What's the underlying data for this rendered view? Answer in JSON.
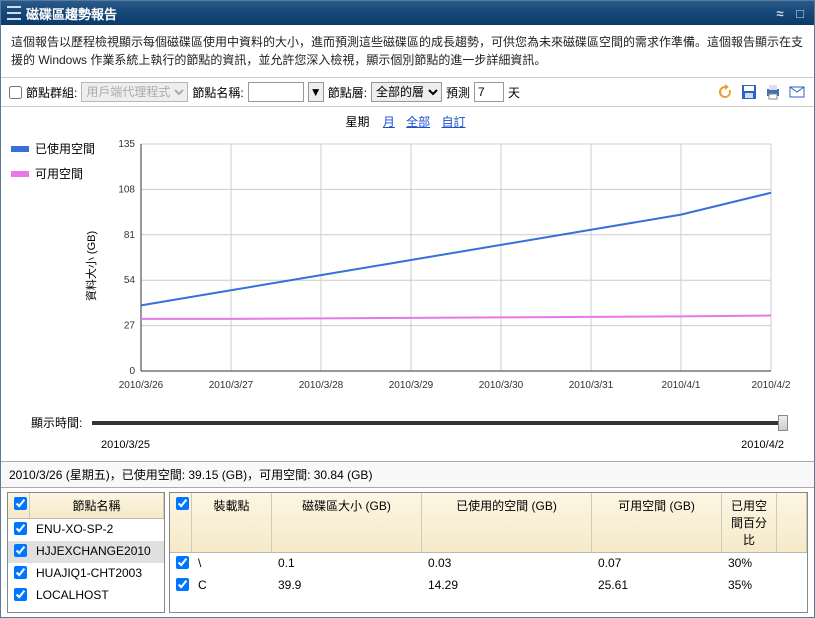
{
  "window": {
    "title": "磁碟區趨勢報告"
  },
  "description": "這個報告以歷程檢視顯示每個磁碟區使用中資料的大小，進而預測這些磁碟區的成長趨勢，可供您為未來磁碟區空間的需求作準備。這個報告顯示在支援的 Windows 作業系統上執行的節點的資訊，並允許您深入檢視，顯示個別節點的進一步詳細資訊。",
  "toolbar": {
    "node_group_label": "節點群組:",
    "node_group_value": "用戶端代理程式",
    "node_name_label": "節點名稱:",
    "node_name_value": "",
    "node_tier_label": "節點層:",
    "node_tier_value": "全部的層",
    "forecast_label": "預測",
    "forecast_value": "7",
    "days_label": "天"
  },
  "period": {
    "label": "星期",
    "links": [
      "月",
      "全部",
      "自訂"
    ]
  },
  "legend": {
    "used": {
      "label": "已使用空間",
      "color": "#3a6fd8"
    },
    "free": {
      "label": "可用空間",
      "color": "#e878e8"
    }
  },
  "chart": {
    "type": "line",
    "ylabel": "資料大小 (GB)",
    "ylim": [
      0,
      135
    ],
    "yticks": [
      0,
      27,
      54,
      81,
      108,
      135
    ],
    "xcats": [
      "2010/3/26",
      "2010/3/27",
      "2010/3/28",
      "2010/3/29",
      "2010/3/30",
      "2010/3/31",
      "2010/4/1",
      "2010/4/2"
    ],
    "series": [
      {
        "key": "used",
        "color": "#3a6fd8",
        "width": 2,
        "values": [
          39,
          48,
          57,
          66,
          75,
          84,
          93,
          106
        ]
      },
      {
        "key": "free",
        "color": "#e878e8",
        "width": 2,
        "values": [
          31,
          31,
          31.3,
          31.6,
          31.9,
          32.2,
          32.5,
          33
        ]
      }
    ],
    "background": "#ffffff",
    "grid_color": "#cccccc"
  },
  "slider": {
    "label": "顯示時間:",
    "start": "2010/3/25",
    "end": "2010/4/2"
  },
  "status": "2010/3/26 (星期五)，已使用空間: 39.15 (GB)，可用空間: 30.84 (GB)",
  "nodes": {
    "header": "節點名稱",
    "rows": [
      {
        "checked": true,
        "name": "ENU-XO-SP-2"
      },
      {
        "checked": true,
        "name": "HJJEXCHANGE2010",
        "selected": true
      },
      {
        "checked": true,
        "name": "HUAJIQ1-CHT2003"
      },
      {
        "checked": true,
        "name": "LOCALHOST"
      }
    ]
  },
  "volumes": {
    "headers": [
      "裝載點",
      "磁碟區大小 (GB)",
      "已使用的空間 (GB)",
      "可用空間 (GB)",
      "已用空間百分比"
    ],
    "rows": [
      {
        "checked": true,
        "mount": "\\",
        "size": "0.1",
        "used": "0.03",
        "free": "0.07",
        "pct": "30%"
      },
      {
        "checked": true,
        "mount": "C",
        "size": "39.9",
        "used": "14.29",
        "free": "25.61",
        "pct": "35%"
      }
    ]
  }
}
